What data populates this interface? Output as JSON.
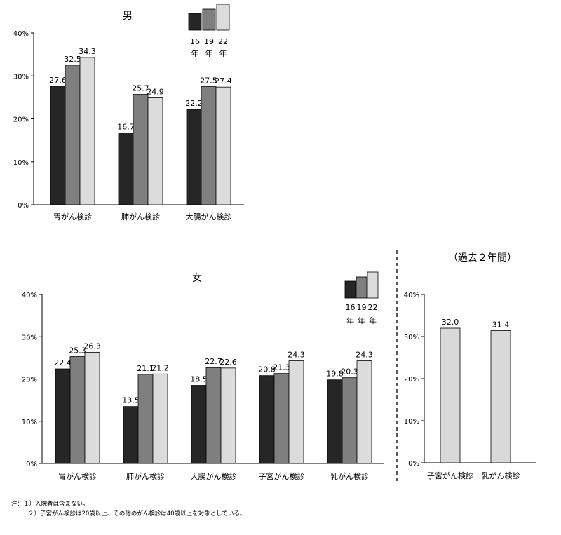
{
  "chart_data": [
    {
      "type": "bar",
      "title": "男",
      "categories": [
        "胃がん検診",
        "肺がん検診",
        "大腸がん検診"
      ],
      "series": [
        {
          "name": "16年",
          "values": [
            27.6,
            16.7,
            22.2
          ]
        },
        {
          "name": "19年",
          "values": [
            32.5,
            25.7,
            27.5
          ]
        },
        {
          "name": "22年",
          "values": [
            34.3,
            24.9,
            27.4
          ]
        }
      ],
      "ylim": [
        0,
        40
      ],
      "yticks": [
        "0%",
        "10%",
        "20%",
        "30%",
        "40%"
      ],
      "legend_placement": "top-right",
      "grid": false
    },
    {
      "type": "bar",
      "title": "女",
      "categories": [
        "胃がん検診",
        "肺がん検診",
        "大腸がん検診",
        "子宮がん検診",
        "乳がん検診"
      ],
      "series": [
        {
          "name": "16年",
          "values": [
            22.4,
            13.5,
            18.5,
            20.8,
            19.8
          ]
        },
        {
          "name": "19年",
          "values": [
            25.3,
            21.1,
            22.7,
            21.3,
            20.3
          ]
        },
        {
          "name": "22年",
          "values": [
            26.3,
            21.2,
            22.6,
            24.3,
            24.3
          ]
        }
      ],
      "ylim": [
        0,
        40
      ],
      "yticks": [
        "0%",
        "10%",
        "20%",
        "30%",
        "40%"
      ],
      "legend_placement": "top-right",
      "grid": false
    },
    {
      "type": "bar",
      "title": "（過去２年間）",
      "categories": [
        "子宮がん検診",
        "乳がん検診"
      ],
      "values": [
        32.0,
        31.4
      ],
      "ylim": [
        0,
        40
      ],
      "yticks": [
        "0%",
        "10%",
        "20%",
        "30%",
        "40%"
      ],
      "grid": false
    }
  ],
  "colors": {
    "y16": "#262626",
    "y19": "#7f7f7f",
    "y22": "#dcdcdc",
    "female_y19": "#555555",
    "single": "#d9d9d9"
  },
  "notes": [
    "注：１）入院者は含まない。",
    "２）子宮がん検診は20歳以上、その他のがん検診は40歳以上を対象としている。"
  ]
}
